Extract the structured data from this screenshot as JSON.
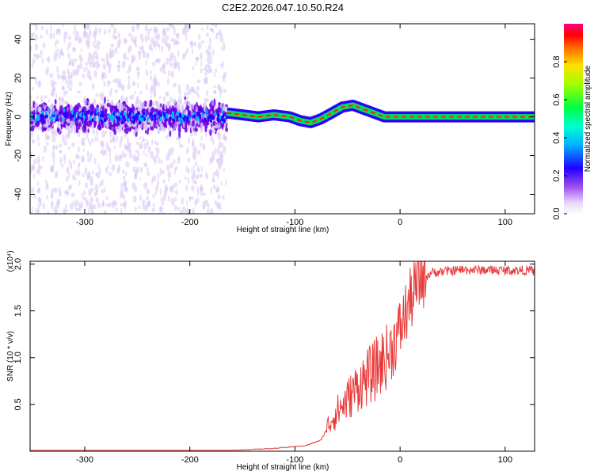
{
  "title": "C2E2.2026.047.10.50.R24",
  "colors": {
    "line": "#e83a3a",
    "strong": "#6a00e8",
    "weak": "#d8c8f4"
  },
  "chart_data": [
    {
      "type": "heatmap",
      "name": "spectrogram",
      "xlabel": "Height of straight line (km)",
      "ylabel": "Frequency (Hz)",
      "xlim": [
        -352,
        128
      ],
      "ylim": [
        -50,
        48
      ],
      "xticks": [
        -300,
        -200,
        -100,
        0,
        100
      ],
      "yticks": [
        -40,
        -20,
        0,
        20,
        40
      ],
      "zlabel": "Normalized spectral amplitude",
      "zlim": [
        0,
        1
      ],
      "zticks": [
        0.0,
        0.2,
        0.4,
        0.6,
        0.8
      ],
      "ridge": {
        "x": [
          -165,
          -150,
          -135,
          -120,
          -105,
          -95,
          -85,
          -75,
          -65,
          -55,
          -45,
          -35,
          -25,
          -15,
          -5,
          0,
          128
        ],
        "y": [
          2,
          1,
          0,
          1,
          0,
          -2,
          -3,
          -1,
          2,
          5,
          6,
          4,
          2,
          0,
          0,
          0,
          0
        ]
      }
    },
    {
      "type": "line",
      "name": "snr",
      "xlabel": "Height of straight line (km)",
      "ylabel": "SNR (10 * v/v)",
      "exponent_label": "(x10⁴)",
      "xlim": [
        -352,
        128
      ],
      "ylim": [
        0.0,
        2.03
      ],
      "xticks": [
        -300,
        -200,
        -100,
        0,
        100
      ],
      "yticks": [
        0.5,
        1.0,
        1.5,
        2.0
      ],
      "trend": {
        "x": [
          -352,
          -160,
          -120,
          -90,
          -75,
          -65,
          -50,
          -40,
          -25,
          -10,
          0,
          10,
          20,
          30,
          60,
          128
        ],
        "y": [
          0.01,
          0.01,
          0.03,
          0.06,
          0.12,
          0.35,
          0.55,
          0.7,
          0.85,
          1.05,
          1.3,
          1.62,
          1.85,
          1.93,
          1.96,
          1.95
        ]
      }
    }
  ]
}
